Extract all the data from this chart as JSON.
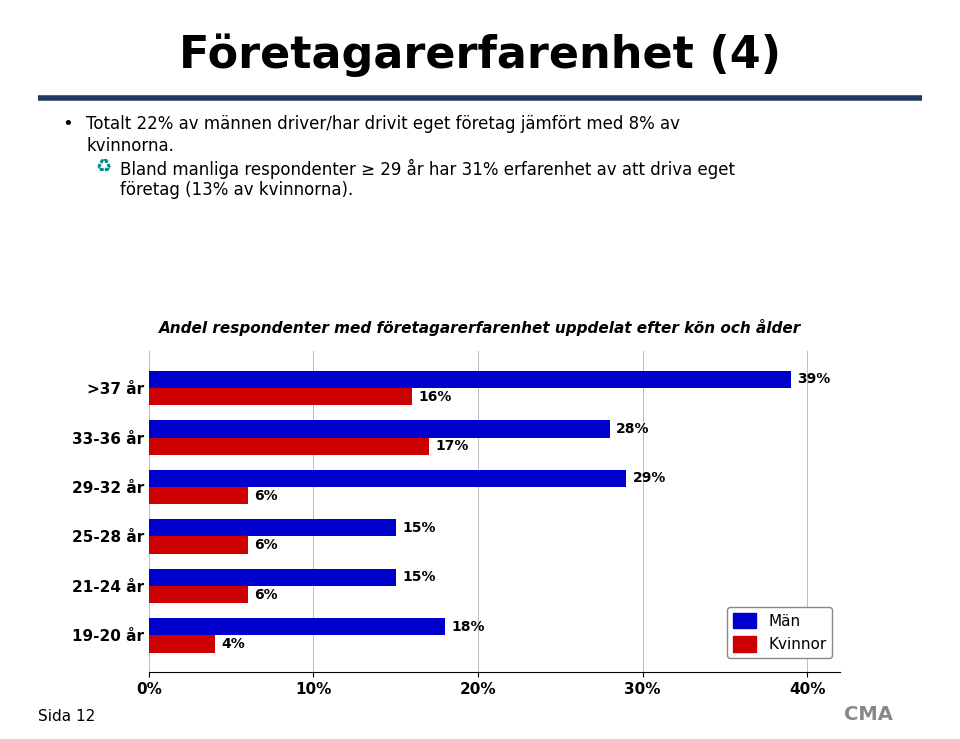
{
  "title": "Företagarerfarenhet (4)",
  "bullet1_line1": "Totalt 22% av männen driver/har drivit eget företag jämfört med 8% av",
  "bullet1_line2": "kvinnorna.",
  "bullet2_line1": "Bland manliga respondenter ≥ 29 år har 31% erfarenhet av att driva eget",
  "bullet2_line2": "företag (13% av kvinnorna).",
  "chart_title": "Andel respondenter med företagarerfarenhet uppdelat efter kön och ålder",
  "categories": [
    ">37 år",
    "33-36 år",
    "29-32 år",
    "25-28 år",
    "21-24 år",
    "19-20 år"
  ],
  "man_values": [
    0.39,
    0.28,
    0.29,
    0.15,
    0.15,
    0.18
  ],
  "kvinna_values": [
    0.16,
    0.17,
    0.06,
    0.06,
    0.06,
    0.04
  ],
  "man_labels": [
    "39%",
    "28%",
    "29%",
    "15%",
    "15%",
    "18%"
  ],
  "kvinna_labels": [
    "16%",
    "17%",
    "6%",
    "6%",
    "6%",
    "4%"
  ],
  "man_color": "#0000CC",
  "kvinna_color": "#CC0000",
  "legend_man": "Män",
  "legend_kvinna": "Kvinnor",
  "footer_left": "Sida 12",
  "background_color": "#FFFFFF",
  "title_line_color": "#1F3864",
  "xlim": [
    0,
    0.42
  ],
  "xticks": [
    0.0,
    0.1,
    0.2,
    0.3,
    0.4
  ],
  "xtick_labels": [
    "0%",
    "10%",
    "20%",
    "30%",
    "40%"
  ]
}
